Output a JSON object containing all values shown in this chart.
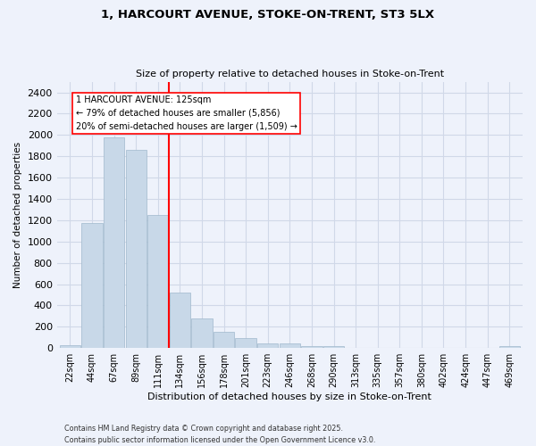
{
  "title_line1": "1, HARCOURT AVENUE, STOKE-ON-TRENT, ST3 5LX",
  "title_line2": "Size of property relative to detached houses in Stoke-on-Trent",
  "xlabel": "Distribution of detached houses by size in Stoke-on-Trent",
  "ylabel": "Number of detached properties",
  "categories": [
    "22sqm",
    "44sqm",
    "67sqm",
    "89sqm",
    "111sqm",
    "134sqm",
    "156sqm",
    "178sqm",
    "201sqm",
    "223sqm",
    "246sqm",
    "268sqm",
    "290sqm",
    "313sqm",
    "335sqm",
    "357sqm",
    "380sqm",
    "402sqm",
    "424sqm",
    "447sqm",
    "469sqm"
  ],
  "values": [
    25,
    1170,
    1980,
    1860,
    1250,
    520,
    275,
    150,
    90,
    45,
    45,
    22,
    15,
    5,
    3,
    2,
    2,
    2,
    1,
    1,
    20
  ],
  "bar_color": "#c8d8e8",
  "bar_edge_color": "#a0b8cc",
  "grid_color": "#d0d8e8",
  "background_color": "#eef2fb",
  "vline_color": "red",
  "vline_pos": 4.5,
  "annotation_text": "1 HARCOURT AVENUE: 125sqm\n← 79% of detached houses are smaller (5,856)\n20% of semi-detached houses are larger (1,509) →",
  "ylim": [
    0,
    2500
  ],
  "yticks": [
    0,
    200,
    400,
    600,
    800,
    1000,
    1200,
    1400,
    1600,
    1800,
    2000,
    2200,
    2400
  ],
  "footnote_line1": "Contains HM Land Registry data © Crown copyright and database right 2025.",
  "footnote_line2": "Contains public sector information licensed under the Open Government Licence v3.0."
}
